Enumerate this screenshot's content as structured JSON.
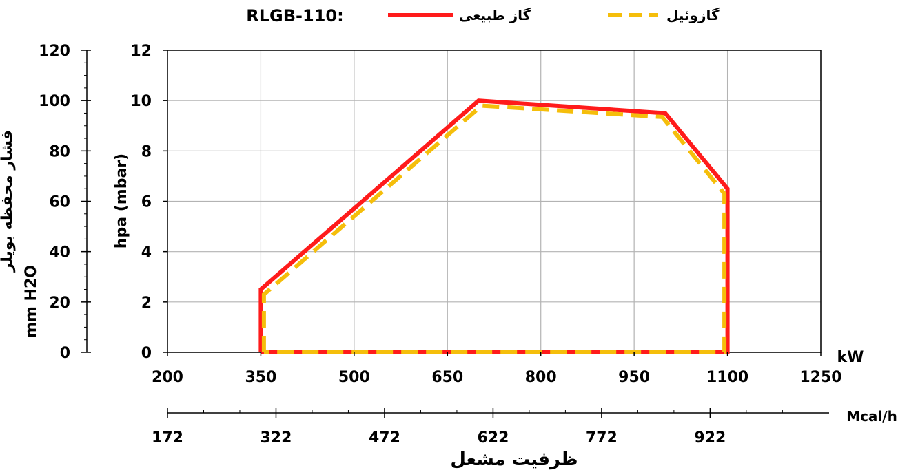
{
  "chart_data": {
    "type": "line",
    "title": "RLGB-110:",
    "legend": [
      {
        "label": "گاز طبیعی",
        "series": 0
      },
      {
        "label": "گازوئیل",
        "series": 1
      }
    ],
    "colors": {
      "gas": "#ff1b1b",
      "diesel": "#f5be0b",
      "grid": "#b3b3b3",
      "axis": "#000000"
    },
    "x_axis": {
      "unit": "kW",
      "min": 200,
      "max": 1250,
      "ticks": [
        "200",
        "350",
        "500",
        "650",
        "800",
        "950",
        "1100",
        "1250"
      ]
    },
    "secondary_x_axis": {
      "unit": "Mcal/h",
      "ticks": [
        "172",
        "322",
        "472",
        "622",
        "772",
        "922"
      ],
      "title": "ظرفیت مشعل"
    },
    "y_axis": {
      "label": "hpa (mbar)",
      "min": 0,
      "max": 12,
      "ticks": [
        "0",
        "2",
        "4",
        "6",
        "8",
        "10",
        "12"
      ]
    },
    "secondary_y_axis": {
      "label_title": "فشار محفظه بویلر",
      "label_unit": "mm H2O",
      "min": 0,
      "max": 120,
      "ticks": [
        "0",
        "20",
        "40",
        "60",
        "80",
        "100",
        "120"
      ]
    },
    "grid": true,
    "series": [
      {
        "name": "گاز طبیعی",
        "style": "solid",
        "points": [
          [
            350,
            0
          ],
          [
            350,
            2.5
          ],
          [
            700,
            10.0
          ],
          [
            1000,
            9.5
          ],
          [
            1100,
            6.5
          ],
          [
            1100,
            0
          ],
          [
            350,
            0
          ]
        ]
      },
      {
        "name": "گازوئیل",
        "style": "dashed",
        "points": [
          [
            355,
            0
          ],
          [
            355,
            2.3
          ],
          [
            705,
            9.8
          ],
          [
            995,
            9.35
          ],
          [
            1095,
            6.3
          ],
          [
            1095,
            0
          ],
          [
            355,
            0
          ]
        ]
      }
    ]
  }
}
